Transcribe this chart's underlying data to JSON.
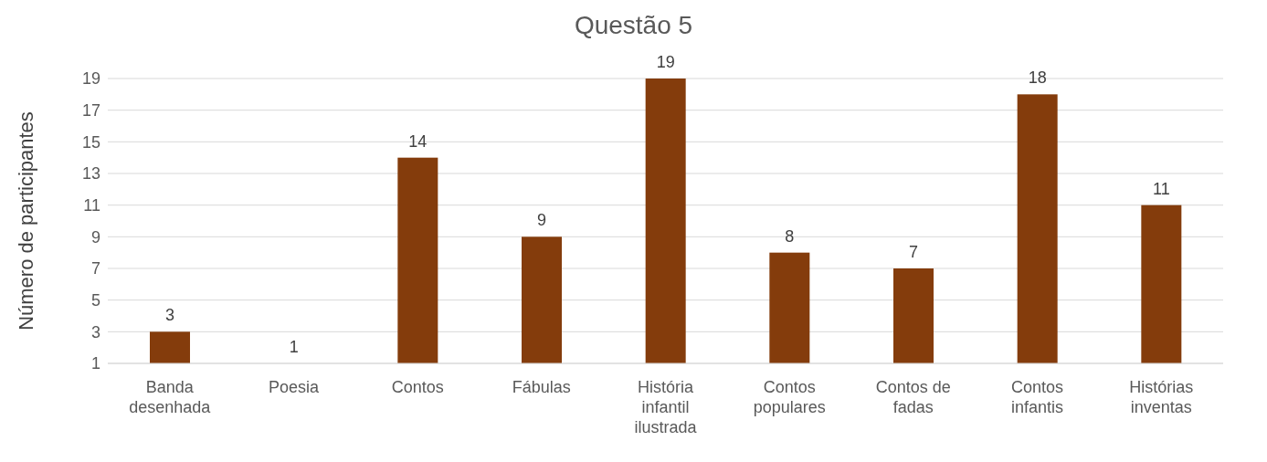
{
  "chart_data": {
    "type": "bar",
    "title": "Questão 5",
    "ylabel": "Número de participantes",
    "categories": [
      "Banda desenhada",
      "Poesia",
      "Contos",
      "Fábulas",
      "História infantil ilustrada",
      "Contos populares",
      "Contos de fadas",
      "Contos infantis",
      "Histórias inventas"
    ],
    "values": [
      3,
      1,
      14,
      9,
      19,
      8,
      7,
      18,
      11
    ],
    "color": "#843c0c",
    "ylim": [
      1,
      19
    ],
    "yticks": [
      1,
      3,
      5,
      7,
      9,
      11,
      13,
      15,
      17,
      19
    ],
    "grid": "y",
    "data_labels": true
  }
}
